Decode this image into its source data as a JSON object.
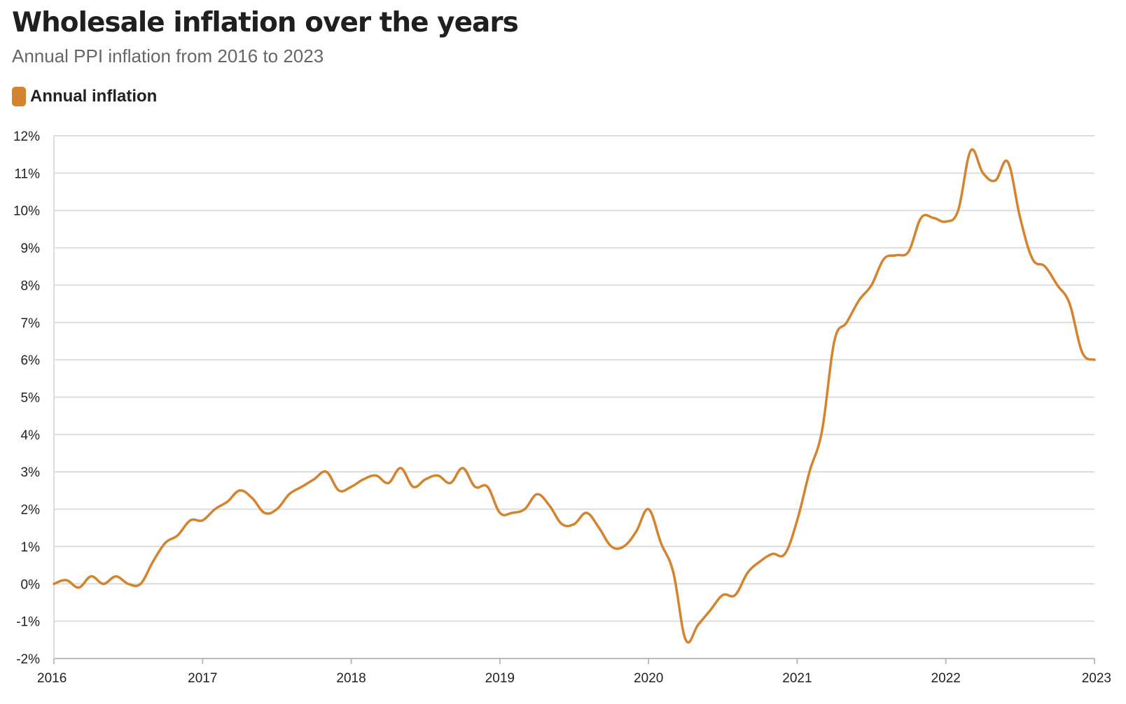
{
  "title": "Wholesale inflation over the years",
  "subtitle": "Annual PPI inflation from 2016 to 2023",
  "colors": {
    "series": "#d4832f",
    "grid": "#dddddd",
    "axis": "#bbbbbb"
  },
  "chart_data": {
    "type": "line",
    "title": "Wholesale inflation over the years",
    "subtitle": "Annual PPI inflation from 2016 to 2023",
    "xlabel": "",
    "ylabel": "",
    "xlim": [
      2016,
      2023
    ],
    "ylim": [
      -2,
      12
    ],
    "grid": true,
    "legend_position": "top-left",
    "x_ticks": [
      "2016",
      "2017",
      "2018",
      "2019",
      "2020",
      "2021",
      "2022",
      "2023"
    ],
    "y_ticks": [
      "-2%",
      "-1%",
      "0%",
      "1%",
      "2%",
      "3%",
      "4%",
      "5%",
      "6%",
      "7%",
      "8%",
      "9%",
      "10%",
      "11%",
      "12%"
    ],
    "series": [
      {
        "name": "Annual inflation",
        "color": "#d4832f",
        "x": [
          2016.0,
          2016.083,
          2016.167,
          2016.25,
          2016.333,
          2016.417,
          2016.5,
          2016.583,
          2016.667,
          2016.75,
          2016.833,
          2016.917,
          2017.0,
          2017.083,
          2017.167,
          2017.25,
          2017.333,
          2017.417,
          2017.5,
          2017.583,
          2017.667,
          2017.75,
          2017.833,
          2017.917,
          2018.0,
          2018.083,
          2018.167,
          2018.25,
          2018.333,
          2018.417,
          2018.5,
          2018.583,
          2018.667,
          2018.75,
          2018.833,
          2018.917,
          2019.0,
          2019.083,
          2019.167,
          2019.25,
          2019.333,
          2019.417,
          2019.5,
          2019.583,
          2019.667,
          2019.75,
          2019.833,
          2019.917,
          2020.0,
          2020.083,
          2020.167,
          2020.25,
          2020.333,
          2020.417,
          2020.5,
          2020.583,
          2020.667,
          2020.75,
          2020.833,
          2020.917,
          2021.0,
          2021.083,
          2021.167,
          2021.25,
          2021.333,
          2021.417,
          2021.5,
          2021.583,
          2021.667,
          2021.75,
          2021.833,
          2021.917,
          2022.0,
          2022.083,
          2022.167,
          2022.25,
          2022.333,
          2022.417,
          2022.5,
          2022.583,
          2022.667,
          2022.75,
          2022.833,
          2022.917,
          2023.0
        ],
        "values": [
          0.0,
          0.1,
          -0.1,
          0.2,
          0.0,
          0.2,
          0.0,
          0.0,
          0.6,
          1.1,
          1.3,
          1.7,
          1.7,
          2.0,
          2.2,
          2.5,
          2.3,
          1.9,
          2.0,
          2.4,
          2.6,
          2.8,
          3.0,
          2.5,
          2.6,
          2.8,
          2.9,
          2.7,
          3.1,
          2.6,
          2.8,
          2.9,
          2.7,
          3.1,
          2.6,
          2.6,
          1.9,
          1.9,
          2.0,
          2.4,
          2.1,
          1.6,
          1.6,
          1.9,
          1.5,
          1.0,
          1.0,
          1.4,
          2.0,
          1.1,
          0.3,
          -1.5,
          -1.1,
          -0.7,
          -0.3,
          -0.3,
          0.3,
          0.6,
          0.8,
          0.8,
          1.7,
          3.0,
          4.1,
          6.5,
          7.0,
          7.6,
          8.0,
          8.7,
          8.8,
          8.9,
          9.8,
          9.8,
          9.7,
          10.0,
          11.6,
          11.0,
          10.8,
          11.3,
          9.8,
          8.7,
          8.5,
          8.0,
          7.5,
          6.2,
          6.0
        ]
      }
    ]
  }
}
